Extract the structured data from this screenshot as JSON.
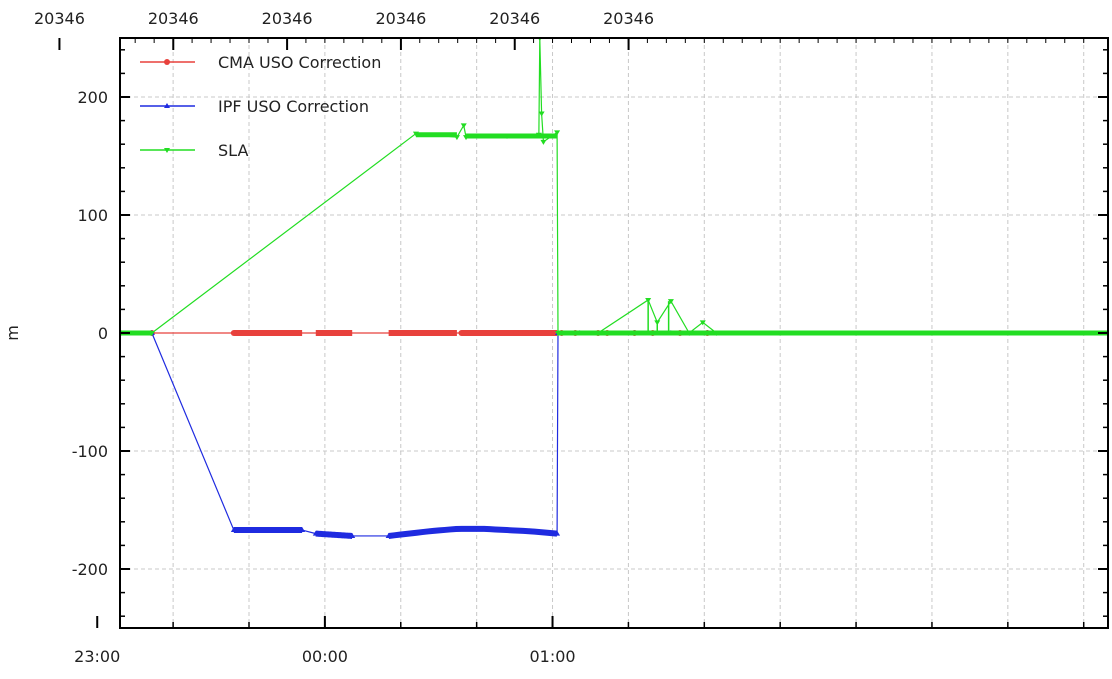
{
  "chart_data": {
    "type": "line",
    "title": "",
    "ylabel": "m",
    "xlabel": "",
    "x_unit": "hours",
    "xlim": [
      -0.45,
      1.72
    ],
    "ylim": [
      -250,
      250
    ],
    "bottom_ticks": [
      {
        "x": -0.5,
        "label": "23:00"
      },
      {
        "x": 0.0,
        "label": "00:00"
      },
      {
        "x": 0.5,
        "label": "01:00"
      }
    ],
    "top_ticks": [
      {
        "x": -0.583,
        "label": "20346"
      },
      {
        "x": -0.333,
        "label": "20346"
      },
      {
        "x": -0.083,
        "label": "20346"
      },
      {
        "x": 0.167,
        "label": "20346"
      },
      {
        "x": 0.417,
        "label": "20346"
      },
      {
        "x": 0.667,
        "label": "20346"
      }
    ],
    "y_ticks": [
      200,
      100,
      0,
      -100,
      -200
    ],
    "grid": true,
    "legend_position": "top-left",
    "series": [
      {
        "name": "CMA USO Correction",
        "color": "#e8413c",
        "marker": "circle",
        "x": [
          -0.45,
          -0.38,
          -0.2,
          0.05,
          0.2,
          0.3,
          0.42,
          0.44,
          0.52,
          0.55,
          0.6,
          0.62,
          0.68,
          0.72,
          0.78,
          0.84
        ],
        "y": [
          0,
          0,
          0,
          0,
          0,
          0,
          0,
          0,
          0,
          0,
          0,
          0,
          0,
          0,
          0,
          0
        ],
        "segments": [
          [
            -0.2,
            -0.05
          ],
          [
            -0.02,
            0.06
          ],
          [
            0.14,
            0.29
          ],
          [
            0.3,
            0.51
          ]
        ]
      },
      {
        "name": "IPF USO Correction",
        "color": "#1f2be0",
        "marker": "triangle",
        "x": [
          -0.45,
          -0.38,
          -0.2,
          -0.05,
          -0.02,
          0.06,
          0.14,
          0.23,
          0.29,
          0.35,
          0.45,
          0.51,
          0.512,
          0.56,
          0.68,
          0.76,
          0.84
        ],
        "y": [
          0,
          0,
          -167,
          -167,
          -170,
          -172,
          -172,
          -168,
          -166,
          -166,
          -168,
          -170,
          0,
          0,
          0,
          0,
          0
        ],
        "segments": [
          [
            -0.2,
            -0.05
          ],
          [
            -0.02,
            0.06
          ],
          [
            0.14,
            0.51
          ]
        ]
      },
      {
        "name": "SLA",
        "color": "#22dd22",
        "marker": "triangle-down",
        "x": [
          -0.45,
          -0.38,
          0.2,
          0.29,
          0.305,
          0.31,
          0.4,
          0.47,
          0.472,
          0.476,
          0.48,
          0.51,
          0.512,
          0.6,
          0.71,
          0.73,
          0.76,
          0.8,
          0.83,
          0.86
        ],
        "y": [
          0,
          0,
          169,
          166,
          176,
          166,
          167,
          168,
          250,
          186,
          162,
          170,
          0,
          0,
          28,
          9,
          27,
          0,
          9,
          0
        ],
        "spikes": [
          {
            "x": 0.71,
            "y": 28
          },
          {
            "x": 0.73,
            "y": 9
          },
          {
            "x": 0.755,
            "y": 27
          }
        ]
      }
    ]
  }
}
